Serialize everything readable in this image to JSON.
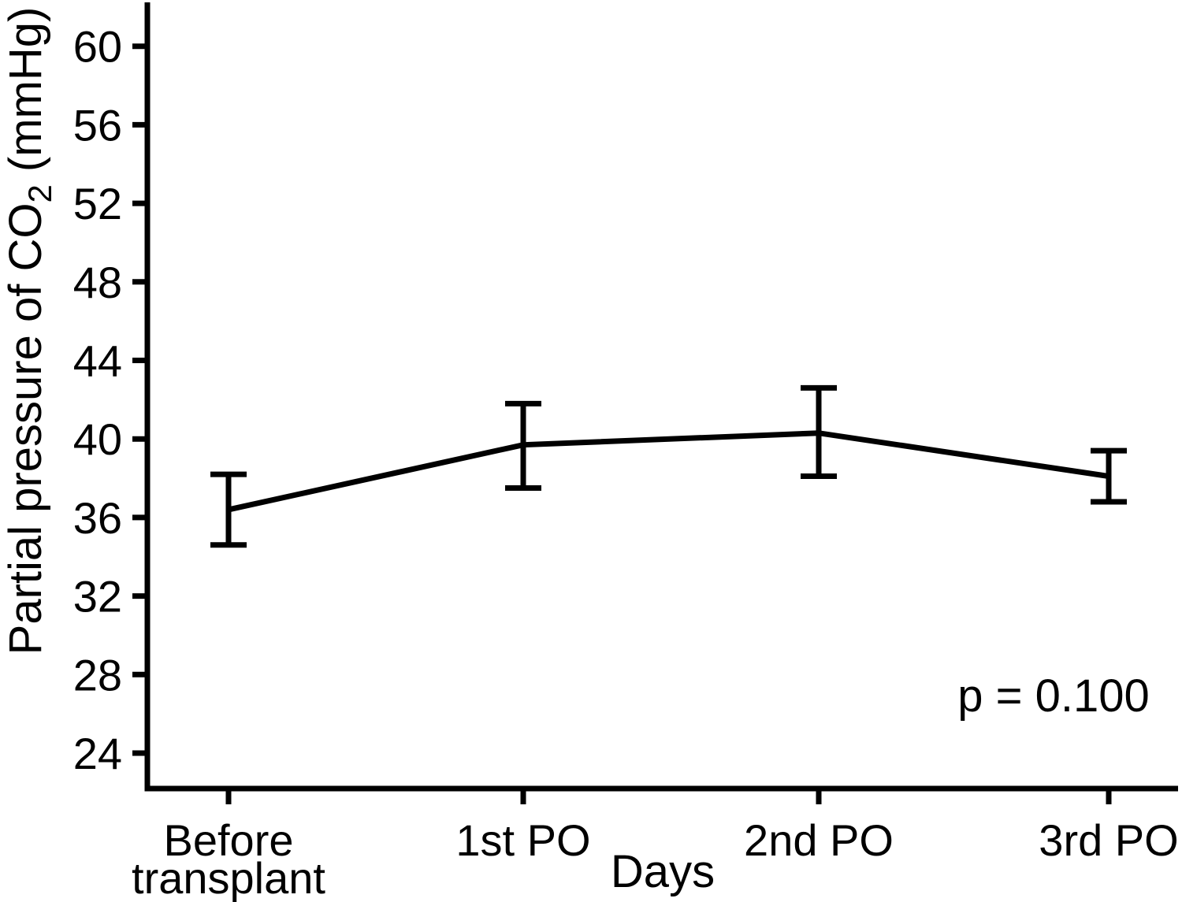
{
  "chart_data": {
    "type": "line",
    "title": "",
    "xlabel": "Days",
    "ylabel": "Partial pressure of CO2 (mmHg)",
    "ylabel_parts": {
      "prefix": "Partial pressure of CO",
      "subscript": "2",
      "suffix": " (mmHg)"
    },
    "categories": [
      "Before\ntransplant",
      "1st PO",
      "2nd PO",
      "3rd PO"
    ],
    "values": [
      36.4,
      39.7,
      40.3,
      38.1
    ],
    "error_upper": [
      38.2,
      41.8,
      42.6,
      39.4
    ],
    "error_lower": [
      34.6,
      37.5,
      38.1,
      36.8
    ],
    "y_ticks": [
      60,
      56,
      52,
      48,
      44,
      40,
      36,
      32,
      28,
      24
    ],
    "ylim": [
      22.2,
      62.3
    ],
    "annotation": "p = 0.100",
    "grid": false,
    "legend": false,
    "line_color": "#000000",
    "text_color": "#000000",
    "background_color": "#ffffff"
  }
}
